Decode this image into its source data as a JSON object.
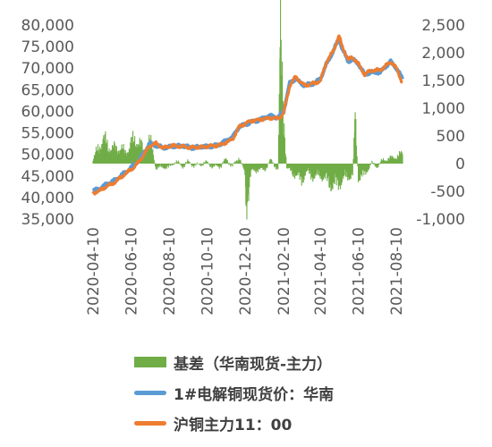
{
  "chart_data": {
    "type": "line",
    "left_axis": {
      "min": 35000,
      "max": 80000,
      "step": 5000,
      "tick_labels": [
        "35,000",
        "40,000",
        "45,000",
        "50,000",
        "55,000",
        "60,000",
        "65,000",
        "70,000",
        "75,000",
        "80,000"
      ]
    },
    "right_axis": {
      "min": -1000,
      "max": 2500,
      "step": 500,
      "tick_labels": [
        "-1,000",
        "-500",
        "0",
        "500",
        "1,000",
        "1,500",
        "2,000",
        "2,500"
      ]
    },
    "x_axis": {
      "start": "2020-04-10",
      "end": "2021-08-20",
      "tick_labels": [
        "2020-04-10",
        "2020-06-10",
        "2020-08-10",
        "2020-10-10",
        "2020-12-10",
        "2021-02-10",
        "2021-04-10",
        "2021-06-10",
        "2021-08-10"
      ]
    },
    "grid": false,
    "legend_position": "bottom",
    "series": [
      {
        "name": "基差（华南现货-主力）",
        "kind": "bar",
        "axis": "right",
        "color": "#70AD47",
        "points": [
          [
            "2020-04-10",
            50
          ],
          [
            "2020-04-20",
            350
          ],
          [
            "2020-05-01",
            400
          ],
          [
            "2020-05-10",
            250
          ],
          [
            "2020-05-20",
            300
          ],
          [
            "2020-06-01",
            200
          ],
          [
            "2020-06-10",
            350
          ],
          [
            "2020-06-20",
            450
          ],
          [
            "2020-07-01",
            200
          ],
          [
            "2020-07-10",
            400
          ],
          [
            "2020-07-15",
            220
          ],
          [
            "2020-07-20",
            -80
          ],
          [
            "2020-08-01",
            -60
          ],
          [
            "2020-08-10",
            -70
          ],
          [
            "2020-08-20",
            40
          ],
          [
            "2020-09-01",
            -50
          ],
          [
            "2020-09-10",
            30
          ],
          [
            "2020-09-20",
            -40
          ],
          [
            "2020-10-10",
            20
          ],
          [
            "2020-10-20",
            -60
          ],
          [
            "2020-11-01",
            -40
          ],
          [
            "2020-11-10",
            80
          ],
          [
            "2020-11-20",
            -50
          ],
          [
            "2020-12-01",
            120
          ],
          [
            "2020-12-10",
            -200
          ],
          [
            "2020-12-12",
            -740
          ],
          [
            "2020-12-20",
            -150
          ],
          [
            "2021-01-01",
            -100
          ],
          [
            "2021-01-10",
            -120
          ],
          [
            "2021-01-20",
            60
          ],
          [
            "2021-02-01",
            -100
          ],
          [
            "2021-02-05",
            2100
          ],
          [
            "2021-02-15",
            -80
          ],
          [
            "2021-03-01",
            -200
          ],
          [
            "2021-03-10",
            -300
          ],
          [
            "2021-03-20",
            -150
          ],
          [
            "2021-04-01",
            -250
          ],
          [
            "2021-04-10",
            -200
          ],
          [
            "2021-04-20",
            -300
          ],
          [
            "2021-05-01",
            -400
          ],
          [
            "2021-05-10",
            -350
          ],
          [
            "2021-05-20",
            -250
          ],
          [
            "2021-06-01",
            -200
          ],
          [
            "2021-06-05",
            800
          ],
          [
            "2021-06-10",
            -250
          ],
          [
            "2021-06-20",
            -200
          ],
          [
            "2021-07-01",
            0
          ],
          [
            "2021-07-10",
            -50
          ],
          [
            "2021-07-20",
            60
          ],
          [
            "2021-08-01",
            100
          ],
          [
            "2021-08-10",
            120
          ],
          [
            "2021-08-20",
            180
          ]
        ]
      },
      {
        "name": "1#电解铜现货价：华南",
        "kind": "line",
        "axis": "left",
        "color": "#5B9BD5",
        "points": [
          [
            "2020-04-10",
            41500
          ],
          [
            "2020-04-20",
            42000
          ],
          [
            "2020-05-01",
            43000
          ],
          [
            "2020-05-15",
            44000
          ],
          [
            "2020-06-01",
            45800
          ],
          [
            "2020-06-15",
            47500
          ],
          [
            "2020-06-25",
            49000
          ],
          [
            "2020-07-01",
            50500
          ],
          [
            "2020-07-10",
            52500
          ],
          [
            "2020-07-20",
            52000
          ],
          [
            "2020-08-01",
            51500
          ],
          [
            "2020-08-15",
            51800
          ],
          [
            "2020-09-01",
            52000
          ],
          [
            "2020-09-15",
            51500
          ],
          [
            "2020-10-01",
            51800
          ],
          [
            "2020-10-20",
            51900
          ],
          [
            "2020-11-01",
            52500
          ],
          [
            "2020-11-20",
            54000
          ],
          [
            "2020-12-01",
            56500
          ],
          [
            "2020-12-20",
            57500
          ],
          [
            "2021-01-01",
            58000
          ],
          [
            "2021-01-20",
            59000
          ],
          [
            "2021-02-01",
            58500
          ],
          [
            "2021-02-10",
            60000
          ],
          [
            "2021-02-20",
            66500
          ],
          [
            "2021-03-01",
            67500
          ],
          [
            "2021-03-15",
            66000
          ],
          [
            "2021-04-01",
            66500
          ],
          [
            "2021-04-10",
            67500
          ],
          [
            "2021-04-20",
            71000
          ],
          [
            "2021-05-01",
            74000
          ],
          [
            "2021-05-10",
            77000
          ],
          [
            "2021-05-15",
            74500
          ],
          [
            "2021-05-25",
            71500
          ],
          [
            "2021-06-01",
            72000
          ],
          [
            "2021-06-10",
            71000
          ],
          [
            "2021-06-20",
            68500
          ],
          [
            "2021-07-01",
            69000
          ],
          [
            "2021-07-15",
            69000
          ],
          [
            "2021-08-01",
            71500
          ],
          [
            "2021-08-10",
            70000
          ],
          [
            "2021-08-20",
            67500
          ]
        ]
      },
      {
        "name": "沪铜主力11：00",
        "kind": "line",
        "axis": "left",
        "color": "#ED7D31",
        "points": [
          [
            "2020-04-10",
            41000
          ],
          [
            "2020-04-20",
            41500
          ],
          [
            "2020-05-01",
            42500
          ],
          [
            "2020-05-15",
            43500
          ],
          [
            "2020-06-01",
            45500
          ],
          [
            "2020-06-15",
            47000
          ],
          [
            "2020-06-25",
            48800
          ],
          [
            "2020-07-01",
            50000
          ],
          [
            "2020-07-10",
            52000
          ],
          [
            "2020-07-20",
            52500
          ],
          [
            "2020-08-01",
            51500
          ],
          [
            "2020-08-15",
            52000
          ],
          [
            "2020-09-01",
            51800
          ],
          [
            "2020-09-15",
            51600
          ],
          [
            "2020-10-01",
            51700
          ],
          [
            "2020-10-20",
            52000
          ],
          [
            "2020-11-01",
            52200
          ],
          [
            "2020-11-20",
            53500
          ],
          [
            "2020-12-01",
            56500
          ],
          [
            "2020-12-20",
            57800
          ],
          [
            "2021-01-01",
            58000
          ],
          [
            "2021-01-20",
            58500
          ],
          [
            "2021-02-01",
            58300
          ],
          [
            "2021-02-10",
            59500
          ],
          [
            "2021-02-20",
            66000
          ],
          [
            "2021-03-01",
            68000
          ],
          [
            "2021-03-15",
            66000
          ],
          [
            "2021-04-01",
            66500
          ],
          [
            "2021-04-10",
            67000
          ],
          [
            "2021-04-20",
            71500
          ],
          [
            "2021-05-01",
            74000
          ],
          [
            "2021-05-10",
            77500
          ],
          [
            "2021-05-15",
            75000
          ],
          [
            "2021-05-25",
            72000
          ],
          [
            "2021-06-01",
            72500
          ],
          [
            "2021-06-10",
            71000
          ],
          [
            "2021-06-20",
            68500
          ],
          [
            "2021-07-01",
            69500
          ],
          [
            "2021-07-15",
            69500
          ],
          [
            "2021-08-01",
            71500
          ],
          [
            "2021-08-10",
            70000
          ],
          [
            "2021-08-20",
            66500
          ]
        ]
      }
    ]
  }
}
